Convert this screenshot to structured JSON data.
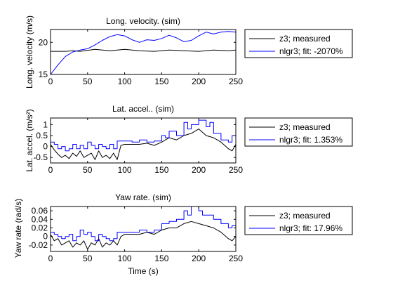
{
  "chart_data": [
    {
      "type": "line",
      "title": "Long. velocity. (sim)",
      "ylabel": "Long. velocity (m/s)",
      "xlabel": "",
      "xlim": [
        0,
        250
      ],
      "ylim": [
        15,
        22
      ],
      "xticks": [
        0,
        50,
        100,
        150,
        200,
        250
      ],
      "yticks": [
        15,
        20
      ],
      "grid": false,
      "legend_placement": "outside-right",
      "series": [
        {
          "name": "z3; measured",
          "color": "#000000",
          "step": false,
          "x": [
            0,
            10,
            20,
            30,
            40,
            60,
            80,
            100,
            120,
            140,
            160,
            180,
            200,
            220,
            240,
            250
          ],
          "y": [
            18.6,
            18.6,
            18.6,
            18.7,
            18.6,
            18.9,
            18.7,
            18.9,
            18.7,
            18.6,
            18.8,
            18.7,
            18.6,
            18.8,
            18.7,
            18.8
          ]
        },
        {
          "name": "nlgr3; fit: -2070%",
          "color": "#0000ff",
          "step": false,
          "x": [
            0,
            10,
            20,
            30,
            40,
            50,
            60,
            70,
            80,
            90,
            100,
            110,
            120,
            130,
            140,
            150,
            160,
            170,
            180,
            190,
            200,
            210,
            220,
            230,
            240,
            250
          ],
          "y": [
            15.0,
            16.5,
            17.8,
            18.5,
            18.8,
            19.0,
            19.6,
            20.3,
            20.9,
            21.2,
            21.0,
            20.4,
            20.0,
            20.4,
            20.3,
            20.6,
            21.1,
            20.7,
            20.1,
            20.3,
            21.0,
            21.6,
            21.3,
            21.6,
            21.7,
            21.6
          ]
        }
      ]
    },
    {
      "type": "line",
      "title": "Lat. accel.. (sim)",
      "ylabel": "Lat. accel. (m/s²)",
      "xlabel": "",
      "xlim": [
        0,
        250
      ],
      "ylim": [
        -0.75,
        1.3
      ],
      "xticks": [
        0,
        50,
        100,
        150,
        200,
        250
      ],
      "yticks": [
        -0.5,
        0,
        0.5,
        1
      ],
      "grid": false,
      "legend_placement": "outside-right",
      "series": [
        {
          "name": "z3; measured",
          "color": "#000000",
          "step": false,
          "x": [
            0,
            5,
            10,
            15,
            20,
            25,
            30,
            35,
            40,
            45,
            50,
            55,
            60,
            65,
            70,
            75,
            80,
            85,
            90,
            95,
            100,
            110,
            120,
            130,
            140,
            150,
            160,
            170,
            180,
            190,
            200,
            210,
            220,
            230,
            240,
            245,
            250
          ],
          "y": [
            0.1,
            -0.15,
            -0.35,
            -0.5,
            -0.4,
            -0.55,
            -0.3,
            -0.45,
            -0.2,
            -0.5,
            -0.4,
            -0.3,
            -0.6,
            -0.2,
            -0.5,
            -0.4,
            -0.55,
            -0.3,
            -0.6,
            0.05,
            0.1,
            0.1,
            0.1,
            0.15,
            0.05,
            0.2,
            0.4,
            0.3,
            0.5,
            0.6,
            0.8,
            0.5,
            0.4,
            0.2,
            -0.1,
            -0.2,
            0.1
          ]
        },
        {
          "name": "nlgr3; fit: 1.353%",
          "color": "#0000ff",
          "step": true,
          "x": [
            0,
            5,
            10,
            15,
            20,
            25,
            30,
            35,
            40,
            45,
            50,
            55,
            60,
            65,
            70,
            75,
            80,
            85,
            90,
            100,
            110,
            120,
            130,
            140,
            150,
            155,
            160,
            170,
            180,
            185,
            190,
            200,
            210,
            215,
            220,
            230,
            240,
            245,
            250
          ],
          "y": [
            0.2,
            0.1,
            -0.1,
            0.0,
            -0.2,
            -0.1,
            0.1,
            -0.1,
            0.05,
            -0.1,
            0.2,
            0.05,
            -0.1,
            0.1,
            0.0,
            -0.1,
            0.1,
            -0.1,
            0.25,
            0.25,
            0.2,
            0.3,
            0.2,
            0.25,
            0.5,
            0.4,
            0.7,
            0.5,
            1.1,
            0.8,
            1.0,
            1.2,
            0.9,
            1.1,
            0.6,
            0.3,
            0.2,
            0.5,
            0.3
          ]
        }
      ]
    },
    {
      "type": "line",
      "title": "Yaw rate. (sim)",
      "ylabel": "Yaw rate (rad/s)",
      "xlabel": "Time (s)",
      "xlim": [
        0,
        250
      ],
      "ylim": [
        -0.035,
        0.07
      ],
      "xticks": [
        0,
        50,
        100,
        150,
        200,
        250
      ],
      "yticks": [
        -0.02,
        0,
        0.02,
        0.04,
        0.06
      ],
      "grid": false,
      "legend_placement": "outside-right",
      "series": [
        {
          "name": "z3; measured",
          "color": "#000000",
          "step": false,
          "x": [
            0,
            5,
            10,
            15,
            20,
            25,
            30,
            35,
            40,
            45,
            50,
            55,
            60,
            65,
            70,
            75,
            80,
            85,
            90,
            95,
            100,
            110,
            120,
            130,
            140,
            150,
            160,
            170,
            180,
            190,
            200,
            210,
            220,
            230,
            240,
            245,
            250
          ],
          "y": [
            0.005,
            -0.01,
            -0.005,
            -0.02,
            -0.015,
            -0.01,
            -0.025,
            -0.015,
            -0.02,
            -0.01,
            -0.03,
            -0.015,
            -0.02,
            -0.005,
            -0.025,
            -0.015,
            -0.02,
            -0.01,
            -0.02,
            0.0,
            0.005,
            0.005,
            0.005,
            0.01,
            0.005,
            0.015,
            0.02,
            0.02,
            0.03,
            0.035,
            0.03,
            0.025,
            0.02,
            0.01,
            -0.005,
            -0.01,
            0.0
          ]
        },
        {
          "name": "nlgr3; fit: 17.96%",
          "color": "#0000ff",
          "step": true,
          "x": [
            0,
            5,
            10,
            15,
            20,
            25,
            30,
            35,
            40,
            45,
            50,
            55,
            60,
            65,
            70,
            75,
            80,
            85,
            90,
            100,
            110,
            120,
            130,
            140,
            150,
            160,
            170,
            180,
            185,
            190,
            200,
            205,
            210,
            220,
            230,
            240,
            245,
            250
          ],
          "y": [
            0.01,
            0.005,
            0.0,
            -0.005,
            0.0,
            0.005,
            -0.01,
            0.0,
            0.015,
            0.005,
            0.01,
            0.0,
            -0.01,
            0.005,
            0.0,
            -0.005,
            -0.01,
            -0.005,
            0.01,
            0.01,
            0.01,
            0.015,
            0.01,
            0.015,
            0.03,
            0.035,
            0.04,
            0.06,
            0.05,
            0.07,
            0.06,
            0.05,
            0.05,
            0.04,
            0.03,
            0.02,
            0.025,
            0.02
          ]
        }
      ]
    }
  ]
}
